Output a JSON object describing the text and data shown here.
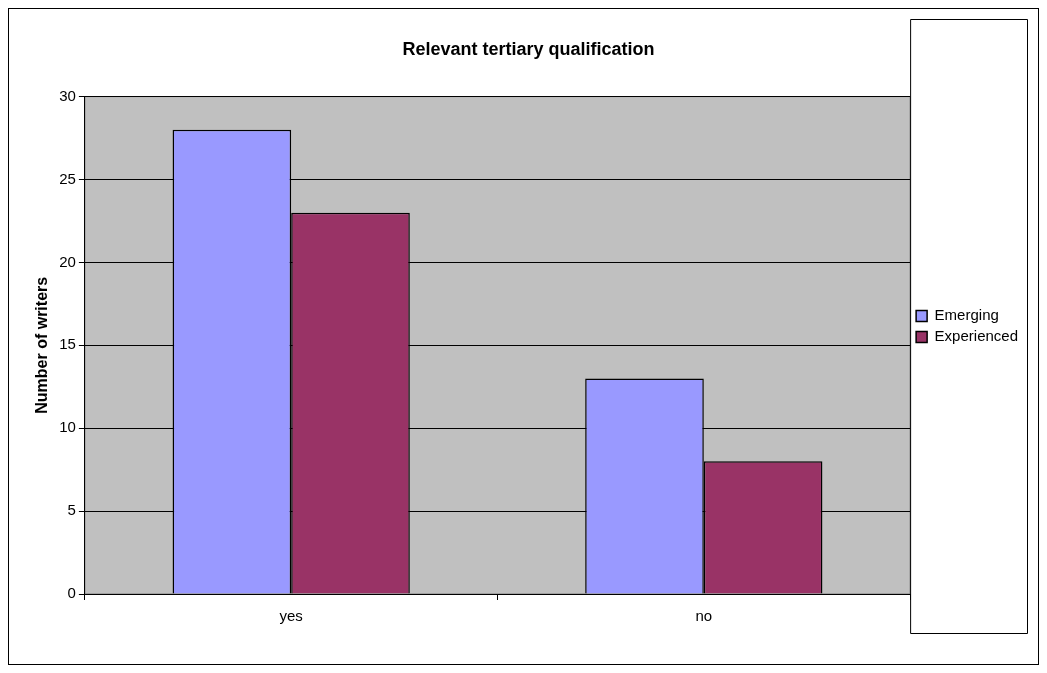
{
  "chart_data": {
    "type": "bar",
    "title": "Relevant tertiary qualification",
    "ylabel": "Number of writers",
    "categories": [
      "yes",
      "no"
    ],
    "series": [
      {
        "name": "Emerging",
        "color": "#9999ff",
        "values": [
          28,
          13
        ]
      },
      {
        "name": "Experienced",
        "color": "#993366",
        "values": [
          23,
          8
        ]
      }
    ],
    "ylim": [
      0,
      30
    ],
    "yticks": [
      0,
      5,
      10,
      15,
      20,
      25,
      30
    ],
    "grid": "y",
    "legend": "right"
  }
}
